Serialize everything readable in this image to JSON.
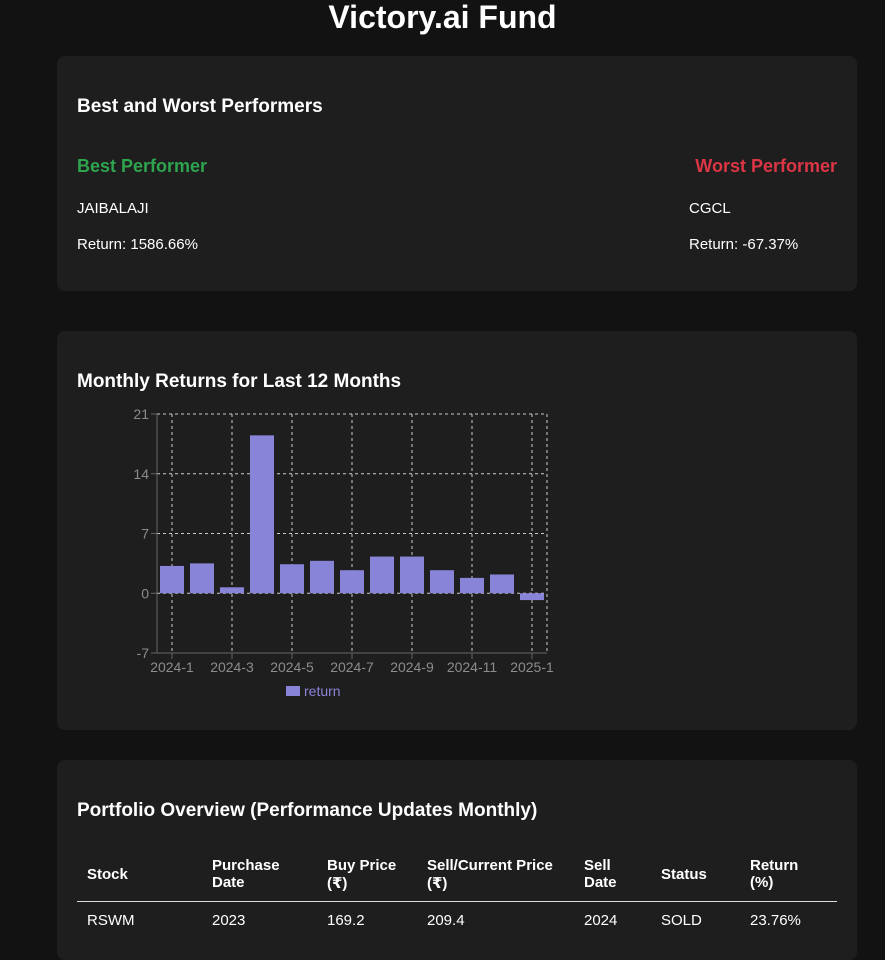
{
  "page": {
    "title": "Victory.ai Fund"
  },
  "performers": {
    "title": "Best and Worst Performers",
    "best": {
      "heading": "Best Performer",
      "stock": "JAIBALAJI",
      "return_text": "Return: 1586.66%"
    },
    "worst": {
      "heading": "Worst Performer",
      "stock": "CGCL",
      "return_text": "Return: -67.37%"
    },
    "colors": {
      "best": "#2ea44f",
      "worst": "#dc3545"
    }
  },
  "chart_section": {
    "title": "Monthly Returns for Last 12 Months"
  },
  "chart_data": {
    "type": "bar",
    "title": "Monthly Returns for Last 12 Months",
    "categories": [
      "2024-1",
      "2024-2",
      "2024-3",
      "2024-4",
      "2024-5",
      "2024-6",
      "2024-7",
      "2024-8",
      "2024-9",
      "2024-10",
      "2024-11",
      "2024-12",
      "2025-1"
    ],
    "x_tick_labels": [
      "2024-1",
      "2024-3",
      "2024-5",
      "2024-7",
      "2024-9",
      "2024-11",
      "2025-1"
    ],
    "series": [
      {
        "name": "return",
        "color": "#8884d8",
        "values": [
          3.2,
          3.5,
          0.7,
          18.5,
          3.4,
          3.8,
          2.7,
          4.3,
          4.3,
          2.7,
          1.8,
          2.2,
          -0.8
        ]
      }
    ],
    "ylim": [
      -7,
      21
    ],
    "yticks": [
      -7,
      0,
      7,
      14,
      21
    ],
    "grid": true,
    "grid_style": "dashed",
    "legend": "bottom"
  },
  "table": {
    "title": "Portfolio Overview (Performance Updates Monthly)",
    "headers": [
      [
        "Stock"
      ],
      [
        "Purchase",
        "Date"
      ],
      [
        "Buy Price",
        "(₹)"
      ],
      [
        "Sell/Current Price",
        "(₹)"
      ],
      [
        "Sell",
        "Date"
      ],
      [
        "Status"
      ],
      [
        "Return",
        "(%)"
      ]
    ],
    "rows": [
      [
        "RSWM",
        "2023",
        "169.2",
        "209.4",
        "2024",
        "SOLD",
        "23.76%"
      ]
    ]
  }
}
